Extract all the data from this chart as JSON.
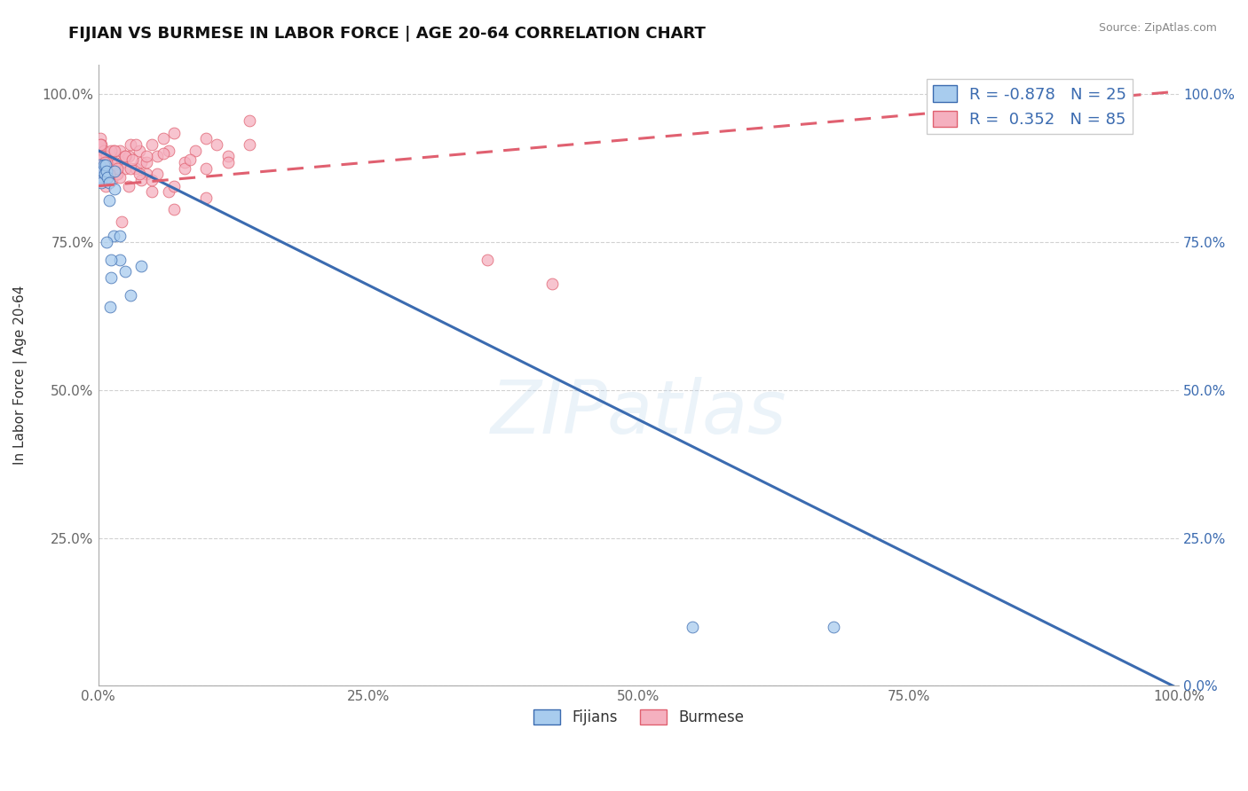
{
  "title": "FIJIAN VS BURMESE IN LABOR FORCE | AGE 20-64 CORRELATION CHART",
  "source": "Source: ZipAtlas.com",
  "ylabel": "In Labor Force | Age 20-64",
  "fijian_R": -0.878,
  "fijian_N": 25,
  "burmese_R": 0.352,
  "burmese_N": 85,
  "fijian_dot_color": "#A8CCEE",
  "burmese_dot_color": "#F5B0BF",
  "fijian_line_color": "#3B6BB0",
  "burmese_line_color": "#E06070",
  "fijian_legend_label": "Fijians",
  "burmese_legend_label": "Burmese",
  "watermark_text": "ZIPatlas",
  "watermark_color": "#B8D4EC",
  "fijian_line_x0": 0.0,
  "fijian_line_y0": 0.905,
  "fijian_line_x1": 1.0,
  "fijian_line_y1": -0.005,
  "burmese_line_x0": 0.0,
  "burmese_line_y0": 0.845,
  "burmese_line_x1": 1.0,
  "burmese_line_y1": 1.005,
  "fijian_x": [
    0.001,
    0.002,
    0.003,
    0.004,
    0.005,
    0.006,
    0.007,
    0.008,
    0.009,
    0.01,
    0.011,
    0.012,
    0.014,
    0.015,
    0.02,
    0.025,
    0.03,
    0.04,
    0.012,
    0.008,
    0.015,
    0.02,
    0.55,
    0.68,
    0.01
  ],
  "fijian_y": [
    0.88,
    0.86,
    0.85,
    0.87,
    0.88,
    0.865,
    0.88,
    0.87,
    0.86,
    0.85,
    0.64,
    0.69,
    0.76,
    0.87,
    0.72,
    0.7,
    0.66,
    0.71,
    0.72,
    0.75,
    0.84,
    0.76,
    0.1,
    0.1,
    0.82
  ],
  "burmese_x": [
    0.001,
    0.001,
    0.002,
    0.002,
    0.003,
    0.003,
    0.004,
    0.004,
    0.005,
    0.005,
    0.006,
    0.007,
    0.008,
    0.009,
    0.01,
    0.011,
    0.012,
    0.013,
    0.014,
    0.015,
    0.016,
    0.018,
    0.02,
    0.022,
    0.025,
    0.028,
    0.03,
    0.035,
    0.038,
    0.04,
    0.045,
    0.05,
    0.055,
    0.06,
    0.065,
    0.07,
    0.08,
    0.09,
    0.1,
    0.11,
    0.12,
    0.14,
    0.003,
    0.006,
    0.009,
    0.012,
    0.018,
    0.025,
    0.03,
    0.04,
    0.05,
    0.07,
    0.002,
    0.004,
    0.007,
    0.01,
    0.015,
    0.02,
    0.028,
    0.038,
    0.05,
    0.065,
    0.08,
    0.1,
    0.008,
    0.012,
    0.018,
    0.025,
    0.035,
    0.045,
    0.055,
    0.07,
    0.085,
    0.1,
    0.12,
    0.14,
    0.006,
    0.01,
    0.015,
    0.022,
    0.032,
    0.045,
    0.06,
    0.36,
    0.42
  ],
  "burmese_y": [
    0.88,
    0.91,
    0.89,
    0.925,
    0.87,
    0.915,
    0.89,
    0.875,
    0.855,
    0.905,
    0.885,
    0.845,
    0.895,
    0.875,
    0.865,
    0.885,
    0.875,
    0.855,
    0.905,
    0.885,
    0.875,
    0.865,
    0.905,
    0.885,
    0.875,
    0.895,
    0.915,
    0.875,
    0.905,
    0.885,
    0.865,
    0.915,
    0.895,
    0.925,
    0.905,
    0.935,
    0.885,
    0.905,
    0.925,
    0.915,
    0.895,
    0.955,
    0.855,
    0.875,
    0.865,
    0.885,
    0.865,
    0.895,
    0.875,
    0.855,
    0.835,
    0.805,
    0.915,
    0.895,
    0.865,
    0.875,
    0.88,
    0.86,
    0.845,
    0.865,
    0.855,
    0.835,
    0.875,
    0.825,
    0.885,
    0.905,
    0.875,
    0.895,
    0.915,
    0.885,
    0.865,
    0.845,
    0.89,
    0.875,
    0.885,
    0.915,
    0.885,
    0.865,
    0.905,
    0.785,
    0.89,
    0.895,
    0.9,
    0.72,
    0.68
  ],
  "xlim": [
    0.0,
    1.0
  ],
  "ylim": [
    0.0,
    1.05
  ],
  "xticks": [
    0.0,
    0.25,
    0.5,
    0.75,
    1.0
  ],
  "yticks": [
    0.0,
    0.25,
    0.5,
    0.75,
    1.0
  ],
  "xticklabels": [
    "0.0%",
    "25.0%",
    "50.0%",
    "75.0%",
    "100.0%"
  ],
  "right_yticklabels": [
    "0.0%",
    "25.0%",
    "50.0%",
    "75.0%",
    "100.0%"
  ],
  "left_yticklabels": [
    "",
    "25.0%",
    "50.0%",
    "75.0%",
    "100.0%"
  ]
}
